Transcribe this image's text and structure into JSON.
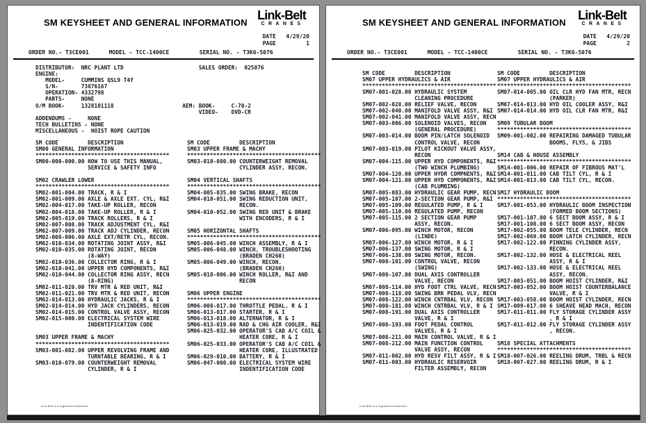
{
  "brand": {
    "name": "Link-Belt",
    "sub": "CRANES"
  },
  "pages": [
    {
      "title": "SM KEYSHEET AND GENERAL INFORMATION",
      "date_block": [
        "DATE   4/29/20",
        "PAGE         1"
      ],
      "order_line": "ORDER NO.- T3CE001      MODEL - TCC-1400CE         SERIAL NO. - T3K6-5076",
      "info_block": [
        "DISTRIBUTOR:  NRC PLANT LTD                       SALES ORDER:  025076",
        "ENGINE:",
        "   MODEL-     CUMMINS QSL9 T4f",
        "   S/N-       73876167",
        "   OPERATION- 4332798",
        "   PARTS-     NONE",
        "O/M BOOK-     1328101118                     AEM: BOOK-     C-70-2",
        "                                                  VIDEO-    DVD-CR",
        "ADDENDUMS -     NONE",
        "TECH BULLETINS - NONE",
        "MISCELLANEOUS -  HOIST ROPE CAUTION"
      ],
      "columns": [
        [
          "SM CODE         DESCRIPTION",
          "SM00 GENERAL INFORMATION",
          "*****************************************",
          "SM00-000-000.00 HOW TO USE THIS MANUAL,",
          "                SERVICE & SAFETY INFO",
          "",
          "SM02 CRAWLER LOWER",
          "*****************************************",
          "SM02-001-004.00 TRACK, R & I",
          "SM02-001-009.00 AXLE & AXLE EXT. CYL, R&I",
          "SM02-004-017.00 TAKE-UP ROLLER, RECON",
          "SM02-004-018.00 TAKE-UP ROLLER, R & I",
          "SM02-005-019.00 TRACK ROLLERS, R & I",
          "SM02-007-008.00 TRACK ADJUSTMENT CYL, R&I",
          "SM02-007-009.00 TRACK ADJ CYLINDER, RECON",
          "SM02-008-006.00 AXLE EXT/RETR CYL, RECON.",
          "SM02-010-034.00 ROTATING JOINT ASSY, R&I",
          "SM02-010-035.00 ROTATING JOINT, RECON",
          "                (8-WAY)",
          "SM02-010-036.00 COLLECTOR RING, R & I",
          "SM02-010-041.00 UPPER HYD COMPONENTS, R&I",
          "SM02-010-044.00 COLLECTOR RING ASSY, RECN",
          "                (8-RING)",
          "SM02-011-020.00 TRV MTR & RED UNIT, R&I",
          "SM02-011-021.00 TRV MTR & RED UNIT, RECON",
          "SM02-014-013.00 HYDRAULIC JACKS, R & I",
          "SM02-014-014.00 HYD JACK CYLINDERS, RECON",
          "SM02-014-015.00 CONTROL VALVE ASSY, RECON",
          "SM02-015-000.00 ELECTRICAL SYSTEM WIRE",
          "                INDENTIFICATION CODE",
          "",
          "SM03 UPPER FRAME & MACHY",
          "*****************************************",
          "SM03-001-082.00 UPPER REVOLVING FRAME AND",
          "                TURNTABLE BEARING, R & I",
          "SM03-010-079.00 COUNTERWEIGHT REMOVAL",
          "                CYLINDER, R & I"
        ],
        [
          "SM CODE         DESCRIPTION",
          "SM03 UPPER FRAME & MACHY",
          "*****************************************",
          "SM03-010-080.00 COUNTERWEIGHT REMOVAL",
          "                CYLINDER ASSY, RECON.",
          "",
          "SM04 VERTICAL SHAFTS",
          "*****************************************",
          "SM04-005-035.00 SWING BRAKE, RECON",
          "SM04-010-051.00 SWING REDUCTION UNIT,",
          "                RECON.",
          "SM04-010-052.00 SWING RED UNIT & BRAKE",
          "                WITH ENCODERS, R & I",
          "",
          "SM05 HORIZONTAL SHAFTS",
          "*****************************************",
          "SM05-006-045.00 WINCH ASSEMBLY, R & I",
          "SM05-006-048.00 WINCH, TROUBLESHOOTING",
          "                (BRADEN CH260)",
          "SM05-006-049.00 WINCH, RECON.",
          "                (BRADEN CH260)",
          "SM05-018-006.00 WINCH ROLLER, R&I AND",
          "                RECON",
          "",
          "SM06 UPPER ENGINE",
          "*****************************************",
          "SM06-008-017.00 THROTTLE PEDAL, R & I",
          "SM06-013-017.00 STARTER, R & I",
          "SM06-013-018.00 ALTERNATOR, R & I",
          "SM06-013-019.00 RAD & CHG AIR COOLER, R&I",
          "SM06-025-032.00 OPERATOR'S CAB A/C COIL &",
          "                HEATER CORE, R & I",
          "SM06-025-033.00 OPERATOR'S CAB A/C COIL &",
          "                HEATER CORE, ILLUSTRATED",
          "SM06-029-010.00 BATTERY, R & I",
          "SM06-047-000.00 ELECTRICAL SYSTEM WIRE",
          "                INDENTIFICATION CODE"
        ]
      ],
      "footer": "Link-Belt is a registered trademark"
    },
    {
      "title": "SM KEYSHEET AND GENERAL INFORMATION",
      "date_block": [
        "DATE   4/29/20",
        "PAGE         2"
      ],
      "order_line": "ORDER NO.- T3CE001      MODEL - TCC-1400CE         SERIAL NO. - T3K6-5076",
      "info_block": [],
      "columns": [
        [
          "SM CODE         DESCRIPTION",
          "SM07 UPPER HYDRAULICS & AIR",
          "*****************************************",
          "SM07-001-028.00 HYDRAULIC SYSTEM",
          "                CLEANING PROCEDURE",
          "SM07-002-028.00 RELIEF VALVE, RECON",
          "SM07-002-040.00 MANIFOLD VALVE ASSY, R&I",
          "SM07-002-041.00 MANIFOLD VALVE ASSY, RECN",
          "SM07-003-006.00 SOLENOID VALVES, RECON",
          "                (GENERAL PROCEDURE)",
          "SM07-003-014.00 BOOM PIN/LATCH SOLENOID",
          "                CONTROL VALVE, RECON",
          "SM07-003-019.00 PILOT KICKOUT VALVE ASSY,",
          "                RECON",
          "SM07-004-115.00 UPPER HYD COMPONENTS, R&I",
          "                (TWO WINCH PLUMBING)",
          "SM07-004-120.00 UPPER HYDR COMPNENTS, R&I",
          "SM07-004-121.00 UPPER HYD COMPONENTS, R&I",
          "                (CAB PLUMBING)",
          "SM07-005-083.00 HYDRAULIC GEAR PUMP, RECN",
          "SM07-005-107.00 2-SECTION GEAR PUMP, R&I",
          "SM07-005-109.00 REGULATED PUMP, R & I",
          "SM07-005-110.00 REGULATED PUMP, RECON",
          "SM07-005-115.00 2 SECTION GEAR PUMP",
          "                ASSY, RECON.",
          "SM07-006-095.00 WINCH MOTOR, RECON",
          "                (LINDE)",
          "SM07-006-127.00 WINCH MOTOR, R & I",
          "SM07-006-137.00 SWING MOTOR, R & I",
          "SM07-006-138.00 SWING MOTOR, RECON.",
          "SM07-008-101.00 CONTROL VALVE, RECON",
          "                (SWING)",
          "SM07-008-107.00 DUAL AXIS CONTROLLER",
          "                VALVE, RECON",
          "SM07-008-114.00 HYD FOOT CTRL VALVE, RECN",
          "SM07-008-118.00 SWING BRK PEDAL VLV, RECN",
          "SM07-008-122.00 WINCH CNTRBAL VLV, RECON",
          "SM07-008-181.00 WINCH CNTRBAL VLV, R & I",
          "SM07-008-191.00 DUAL AXIS CONTROLLER",
          "                VALVE, R & I",
          "SM07-008-193.00 FOOT PEDAL CONTROL",
          "                VALVES, R & I",
          "SM07-008-211.00 MAIN CONTROL VALVE, R & I",
          "SM07-008-212.00 MAIN FUNCTION CONTROL",
          "                VALVE ASSY, RECON",
          "SM07-011-002.00 HYD RESV FILT ASSY, R & I",
          "SM07-011-003.00 HYDRAULIC RESERVOIR",
          "                FILTER ASSEMBLY, RECON"
        ],
        [
          "SM CODE         DESCRIPTION",
          "SM07 UPPER HYDRAULICS & AIR",
          "*****************************************",
          "SM07-014-005.00 OIL CLR HYD FAN MTR, RECN",
          "                (PARKER)",
          "SM07-014-013.00 HYD OIL COOLER ASSY, R&I",
          "SM07-014-014.00 HYD OIL CLR FAN MTR, R&I",
          "",
          "SM09 TUBULAR BOOM",
          "*****************************************",
          "SM09-001-002.00 REPAIRING DAMAGED TUBULAR",
          "                BOOMS, FLYS, & JIBS",
          "",
          "SM14 CAB & HOUSE ASSEMBLY",
          "*****************************************",
          "SM14-001-006.00 REPAIR OF FIBROUS MAT'L",
          "SM14-001-011.00 CAB TILT CYL, R & I",
          "SM14-001-013.00 CAB TILT CYL, RECON.",
          "",
          "SM17 HYDRAULIC BOOM",
          "*****************************************",
          "SM17-001-053.00 HYDRAULIC BOOM INSPECTION",
          "                (FORMED BOOM SECTIONS)",
          "SM17-001-107.00 6 SECT BOOM ASSY, R & I",
          "SM17-001-108.00 6 SECT BOOM ASSY, RECON",
          "SM17-002-055.00 BOOM TELE CYLINDER, RECN",
          "SM17-002-069.00 BOOM LATCH CYLINDER, RECN",
          "SM17-002-122.00 PINNING CYLINDER ASSY,",
          "                RECON.",
          "SM17-002-132.00 HOSE & ELECTRICAL REEL",
          "                ASSY, R & I",
          "SM17-002-133.00 HOSE & ELECTRICAL REEL",
          "                ASSY, RECON.",
          "SM17-003-051.00 BOOM HOIST CYLINDER, R&I",
          "SM17-003-052.00 BOOM HOIST COUNTERBALANCE",
          "                VALVE, R & I",
          "SM17-003-058.00 BOOM HOIST CYLINDER, RECN",
          "SM17-009-017.00 6 SHEAVE HEAD MACH, RECON",
          "SM17-011-011.00 FLY STORAGE CYLINDER ASSY",
          "                , R & I",
          "SM17-011-012.00 FLY STORAGE CYLINDER ASSY",
          "                , RECON.",
          "",
          "SM18 SPECIAL ATTACHMENTS",
          "*****************************************",
          "SM18-007-026.00 REELING DRUM, TRBL & RECN",
          "SM18-007-027.00 REELING DRUM, R & I"
        ]
      ],
      "footer": "Link-Belt is a registered trademark"
    }
  ]
}
